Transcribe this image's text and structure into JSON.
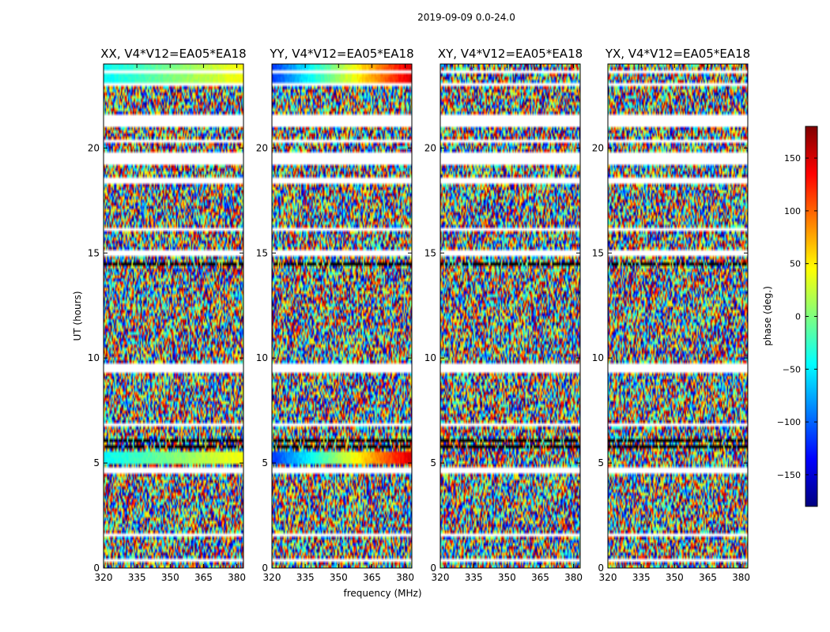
{
  "chart_data": {
    "type": "heatmap",
    "suptitle": "2019-09-09 0.0-24.0",
    "xlabel": "frequency (MHz)",
    "ylabel": "UT (hours)",
    "xlim": [
      320,
      383
    ],
    "ylim": [
      0,
      24
    ],
    "xticks": [
      320,
      335,
      350,
      365,
      380
    ],
    "yticks": [
      0,
      5,
      10,
      15,
      20
    ],
    "panels": [
      {
        "title": "XX, V4*V12=EA05*EA18",
        "pol": "XX"
      },
      {
        "title": "YY, V4*V12=EA05*EA18",
        "pol": "YY"
      },
      {
        "title": "XY, V4*V12=EA05*EA18",
        "pol": "XY"
      },
      {
        "title": "YX, V4*V12=EA05*EA18",
        "pol": "YX"
      }
    ],
    "flagged_gaps_hours": [
      [
        0.3,
        0.4
      ],
      [
        1.45,
        1.6
      ],
      [
        2.8,
        2.9
      ],
      [
        4.55,
        4.75
      ],
      [
        5.05,
        5.1
      ],
      [
        6.7,
        6.85
      ],
      [
        7.6,
        7.7
      ],
      [
        9.35,
        9.75
      ],
      [
        13.9,
        14.0
      ],
      [
        14.9,
        15.1
      ],
      [
        16.05,
        16.15
      ],
      [
        16.9,
        17.0
      ],
      [
        18.35,
        18.55
      ],
      [
        19.2,
        19.85
      ],
      [
        20.3,
        20.45
      ],
      [
        21.0,
        21.55
      ],
      [
        22.9,
        23.05
      ],
      [
        23.6,
        23.75
      ]
    ],
    "black_bands_hours": [
      [
        5.75,
        5.8
      ],
      [
        6.05,
        6.1
      ],
      [
        13.15,
        13.2
      ],
      [
        14.45,
        14.5
      ]
    ],
    "colorbar": {
      "label": "phase (deg.)",
      "range": [
        -180,
        180
      ],
      "ticks": [
        -150,
        -100,
        -50,
        0,
        50,
        100,
        150
      ],
      "tick_labels": [
        "−150",
        "−100",
        "−50",
        "0",
        "50",
        "100",
        "150"
      ],
      "colormap": [
        "#00007f",
        "#0000ff",
        "#007fff",
        "#00ffff",
        "#7fff7f",
        "#ffff00",
        "#ff7f00",
        "#ff0000",
        "#7f0000"
      ]
    }
  }
}
